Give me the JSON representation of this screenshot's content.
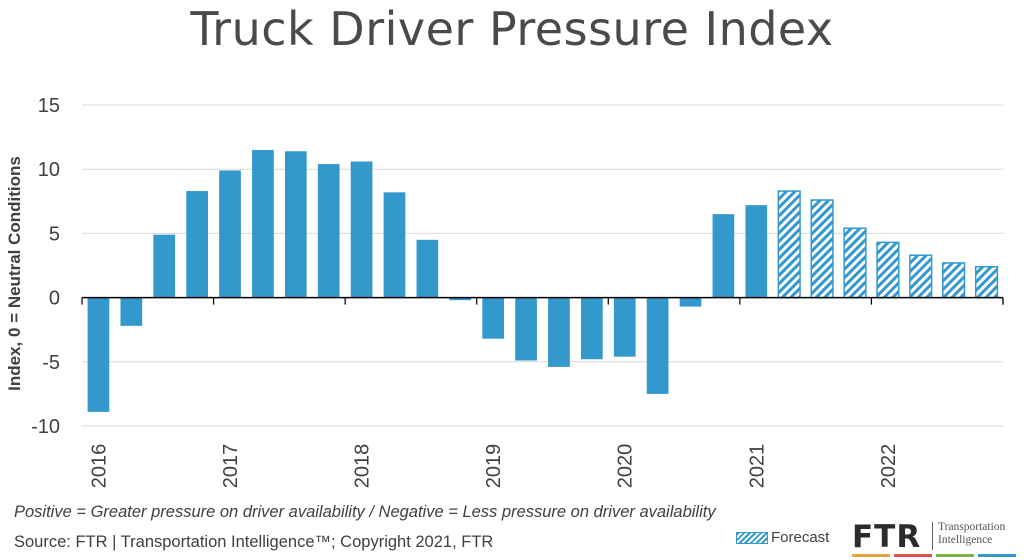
{
  "title": "Truck Driver Pressure Index",
  "note": "Positive = Greater pressure on driver availability / Negative = Less pressure on driver availability",
  "source": "Source: FTR | Transportation Intelligence™; Copyright 2021, FTR",
  "legend": {
    "forecast_label": "Forecast"
  },
  "logo": {
    "brand": "FTR",
    "tagline_line1": "Transportation",
    "tagline_line2": "Intelligence",
    "stripe_colors": [
      "#e8a33d",
      "#d9534f",
      "#7cb342",
      "#3399cc"
    ]
  },
  "colors": {
    "actual": "#3399cc",
    "forecast": "#3399cc",
    "grid": "#d9d9d9",
    "axis": "#000000"
  },
  "chart_data": {
    "type": "bar",
    "title": "Truck Driver Pressure Index",
    "ylabel": "Index, 0 = Neutral Conditions",
    "ylim": [
      -10,
      15
    ],
    "yticks": [
      -10,
      -5,
      0,
      5,
      10,
      15
    ],
    "grid": true,
    "year_labels": [
      "2016",
      "2017",
      "2018",
      "2019",
      "2020",
      "2021",
      "2022"
    ],
    "quarters_per_year": 4,
    "values": [
      -8.9,
      -2.2,
      4.9,
      8.3,
      9.9,
      11.5,
      11.4,
      10.4,
      10.6,
      8.2,
      4.5,
      -0.2,
      -3.2,
      -4.9,
      -5.4,
      -4.8,
      -4.6,
      -7.5,
      -0.7,
      6.5,
      7.2,
      8.3,
      7.6,
      5.4,
      4.3,
      3.3,
      2.7,
      2.4
    ],
    "forecast_start_index": 21,
    "legend": [
      "Forecast"
    ]
  }
}
